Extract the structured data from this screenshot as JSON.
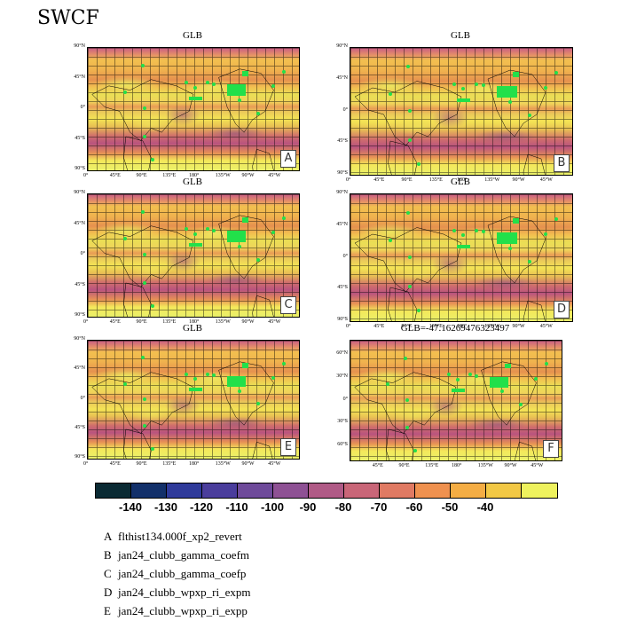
{
  "title": "SWCF",
  "chart_data": {
    "type": "heatmap",
    "panels": [
      {
        "letter": "A",
        "title": "GLB",
        "ylabels": [
          "90°N",
          "45°N",
          "0°",
          "45°S",
          "90°S"
        ],
        "xlabels": [
          "0°",
          "45°E",
          "90°E",
          "135°E",
          "180°",
          "135°W",
          "90°W",
          "45°W"
        ]
      },
      {
        "letter": "B",
        "title": "GLB",
        "ylabels": [
          "90°N",
          "45°N",
          "0°",
          "45°S",
          "90°S"
        ],
        "xlabels": [
          "0°",
          "45°E",
          "90°E",
          "135°E",
          "180°",
          "135°W",
          "90°W",
          "45°W"
        ]
      },
      {
        "letter": "C",
        "title": "GLB",
        "ylabels": [
          "90°N",
          "45°N",
          "0°",
          "45°S",
          "90°S"
        ],
        "xlabels": [
          "0°",
          "45°E",
          "90°E",
          "135°E",
          "180°",
          "135°W",
          "90°W",
          "45°W"
        ]
      },
      {
        "letter": "D",
        "title": "GLB",
        "ylabels": [
          "90°N",
          "45°N",
          "0°",
          "45°S",
          "90°S"
        ],
        "xlabels": [
          "0°",
          "45°E",
          "90°E",
          "135°E",
          "180°",
          "135°W",
          "90°W",
          "45°W"
        ]
      },
      {
        "letter": "E",
        "title": "GLB",
        "ylabels": [
          "90°N",
          "45°N",
          "0°",
          "45°S",
          "90°S"
        ],
        "xlabels": [
          "0°",
          "45°E",
          "90°E",
          "135°E",
          "180°",
          "135°W",
          "90°W",
          "45°W"
        ]
      },
      {
        "letter": "F",
        "title": "GLB=-47.16269476323497",
        "ylabels": [
          "60°N",
          "30°N",
          "0°",
          "30°S",
          "60°S"
        ],
        "xlabels": [
          "45°E",
          "90°E",
          "135°E",
          "180°",
          "135°W",
          "90°W",
          "45°W"
        ]
      }
    ],
    "colorbar": {
      "colors": [
        "#0a2a33",
        "#12306a",
        "#2f3a9a",
        "#4a3d9c",
        "#6e4a9a",
        "#8e5194",
        "#b05a86",
        "#c96678",
        "#e07a63",
        "#ef914f",
        "#f4ad44",
        "#f2c845",
        "#eef25e"
      ],
      "labels": [
        "-140",
        "-130",
        "-120",
        "-110",
        "-100",
        "-90",
        "-80",
        "-70",
        "-60",
        "-50",
        "-40"
      ]
    }
  },
  "legend": [
    {
      "key": "A",
      "name": "flthist134.000f_xp2_revert"
    },
    {
      "key": "B",
      "name": "jan24_clubb_gamma_coefm"
    },
    {
      "key": "C",
      "name": "jan24_clubb_gamma_coefp"
    },
    {
      "key": "D",
      "name": "jan24_clubb_wpxp_ri_expm"
    },
    {
      "key": "E",
      "name": "jan24_clubb_wpxp_ri_expp"
    }
  ]
}
